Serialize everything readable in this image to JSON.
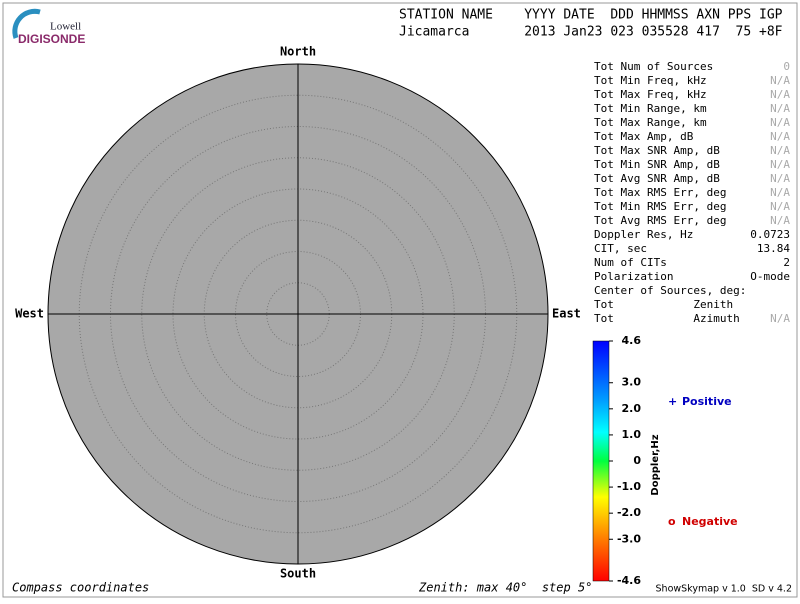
{
  "logo": {
    "top": "Lowell",
    "bottom": "DIGISONDE"
  },
  "header": {
    "columns": "STATION NAME    YYYY DATE  DDD HHMMSS AXN PPS IGP",
    "values": "Jicamarca       2013 Jan23 023 035528 417  75 +8F"
  },
  "compass": {
    "north": "North",
    "south": "South",
    "east": "East",
    "west": "West"
  },
  "stats": [
    {
      "label": "Tot Num of Sources",
      "value": "0"
    },
    {
      "label": "Tot Min Freq, kHz",
      "value": "N/A"
    },
    {
      "label": "Tot Max Freq, kHz",
      "value": "N/A"
    },
    {
      "label": "Tot Min Range, km",
      "value": "N/A"
    },
    {
      "label": "Tot Max Range, km",
      "value": "N/A"
    },
    {
      "label": "Tot Max Amp, dB",
      "value": "N/A"
    },
    {
      "label": "Tot Max SNR Amp, dB",
      "value": "N/A"
    },
    {
      "label": "Tot Min SNR Amp, dB",
      "value": "N/A"
    },
    {
      "label": "Tot Avg SNR Amp, dB",
      "value": "N/A"
    },
    {
      "label": "Tot Max RMS Err, deg",
      "value": "N/A"
    },
    {
      "label": "Tot Min RMS Err, deg",
      "value": "N/A"
    },
    {
      "label": "Tot Avg RMS Err, deg",
      "value": "N/A"
    },
    {
      "label": "Doppler Res, Hz",
      "value": "0.0723"
    },
    {
      "label": "CIT, sec",
      "value": "13.84"
    },
    {
      "label": "Num of CITs",
      "value": "2"
    },
    {
      "label": "Polarization",
      "value": "O-mode"
    },
    {
      "label": "Center of Sources, deg:"
    },
    {
      "label": "Tot            Zenith"
    },
    {
      "label": "Tot            Azimuth",
      "value": "N/A"
    }
  ],
  "colorbar": {
    "title": "Doppler,Hz",
    "ticks": [
      "4.6",
      "3.0",
      "2.0",
      "1.0",
      "0",
      "-1.0",
      "-2.0",
      "-3.0",
      "-4.6"
    ]
  },
  "legend": {
    "positive_symbol": "+",
    "positive": "Positive",
    "negative_symbol": "o",
    "negative": "Negative"
  },
  "footer": {
    "left": "Compass coordinates",
    "middle": "Zenith: max 40°  step 5°",
    "right": "ShowSkymap v 1.0  SD v 4.2"
  }
}
